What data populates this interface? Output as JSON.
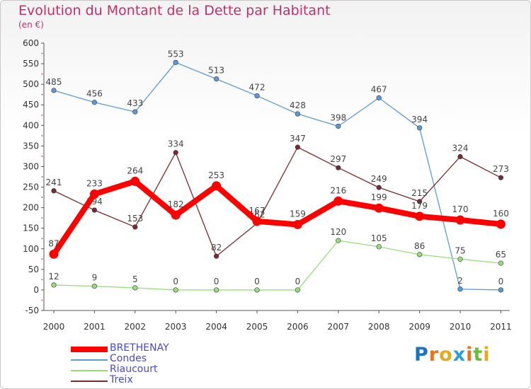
{
  "header": {
    "title": "Evolution du Montant de la Dette par Habitant",
    "unit": "(en €)"
  },
  "logo": {
    "text": "Proxiti"
  },
  "chart_data": {
    "type": "line",
    "title": "Evolution du Montant de la Dette par Habitant",
    "subtitle": "(en €)",
    "xlabel": "",
    "ylabel": "",
    "categories": [
      "2000",
      "2001",
      "2002",
      "2003",
      "2004",
      "2005",
      "2006",
      "2007",
      "2008",
      "2009",
      "2010",
      "2011"
    ],
    "ylim": [
      -50,
      600
    ],
    "yticks": [
      -50,
      0,
      50,
      100,
      150,
      200,
      250,
      300,
      350,
      400,
      450,
      500,
      550,
      600
    ],
    "grid": false,
    "legend_position": "bottom-left",
    "series": [
      {
        "name": "BRETHENAY",
        "color": "#ff0000",
        "values": [
          87,
          233,
          264,
          182,
          253,
          167,
          159,
          216,
          199,
          179,
          170,
          160
        ]
      },
      {
        "name": "Condes",
        "color": "#5b9bd5",
        "values": [
          485,
          456,
          433,
          553,
          513,
          472,
          428,
          398,
          467,
          394,
          2,
          0
        ]
      },
      {
        "name": "Riaucourt",
        "color": "#99dd77",
        "values": [
          12,
          9,
          5,
          0,
          0,
          0,
          0,
          120,
          105,
          86,
          75,
          65
        ]
      },
      {
        "name": "Treix",
        "color": "#7a2a2a",
        "values": [
          241,
          194,
          153,
          334,
          82,
          162,
          347,
          297,
          249,
          215,
          324,
          273
        ]
      }
    ]
  }
}
